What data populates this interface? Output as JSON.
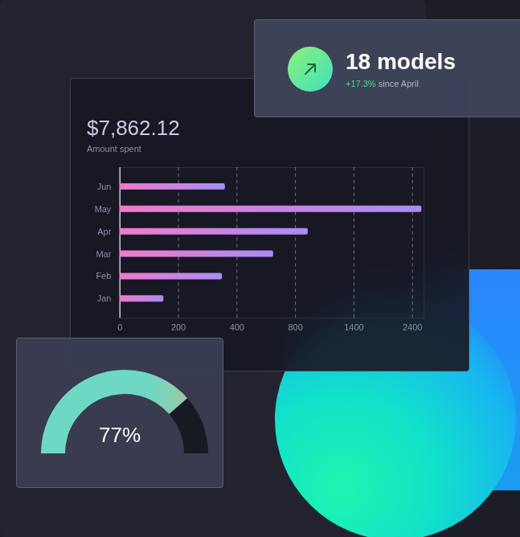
{
  "chart_data": {
    "type": "bar",
    "orientation": "horizontal",
    "title": "$7,862.12",
    "subtitle": "Amount spent",
    "categories": [
      "Jun",
      "May",
      "Apr",
      "Mar",
      "Feb",
      "Jan"
    ],
    "values": [
      360,
      2560,
      930,
      650,
      350,
      150
    ],
    "color": "#a98cf6",
    "xlim": [
      0,
      2600
    ],
    "xticks": [
      0,
      200,
      400,
      800,
      1400,
      2400
    ],
    "grid": true
  },
  "models_card": {
    "title": "18 models",
    "change": "+17.3%",
    "note": "since April"
  },
  "gauge": {
    "value": 77,
    "range": [
      0,
      100
    ],
    "label": "77%"
  }
}
